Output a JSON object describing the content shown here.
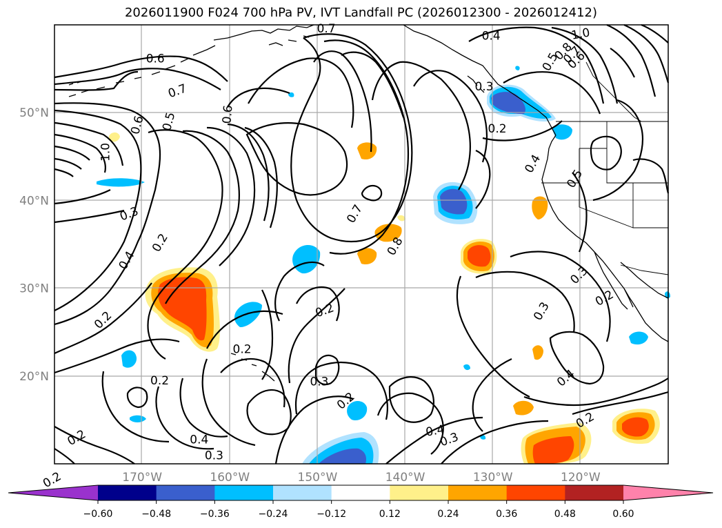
{
  "title": "2026011900 F024 700 hPa PV, IVT Landfall PC (2026012300 - 2026012412)",
  "latitudes": [
    {
      "label": "50°N",
      "lat": 50
    },
    {
      "label": "40°N",
      "lat": 40
    },
    {
      "label": "30°N",
      "lat": 30
    },
    {
      "label": "20°N",
      "lat": 20
    }
  ],
  "longitudes": [
    {
      "label": "170°W",
      "lon": -170
    },
    {
      "label": "160°W",
      "lon": -160
    },
    {
      "label": "150°W",
      "lon": -150
    },
    {
      "label": "140°W",
      "lon": -140
    },
    {
      "label": "130°W",
      "lon": -130
    },
    {
      "label": "120°W",
      "lon": -120
    }
  ],
  "colorbar": {
    "colors": [
      "#9a32cd",
      "#00008b",
      "#3a5fcd",
      "#00bfff",
      "#b0e2ff",
      "#ffffff",
      "#fff08a",
      "#ffa500",
      "#ff4500",
      "#b22222",
      "#ff82ab"
    ],
    "ticks": [
      "−0.60",
      "−0.48",
      "−0.36",
      "−0.24",
      "−0.12",
      "0.12",
      "0.24",
      "0.36",
      "0.48",
      "0.60"
    ]
  },
  "contour_labels": [
    {
      "text": "0.6",
      "lon": -168.5,
      "lat": 56.2,
      "rot": 0
    },
    {
      "text": "0.7",
      "lon": -166.0,
      "lat": 52.5,
      "rot": -20
    },
    {
      "text": "0.7",
      "lon": -149.0,
      "lat": 59.6,
      "rot": 0
    },
    {
      "text": "0.6",
      "lon": -160.3,
      "lat": 49.8,
      "rot": -85
    },
    {
      "text": "0.4",
      "lon": -130.2,
      "lat": 58.8,
      "rot": 0
    },
    {
      "text": "1.0",
      "lon": -120.0,
      "lat": 59.0,
      "rot": -10
    },
    {
      "text": "0.8",
      "lon": -122.0,
      "lat": 57.0,
      "rot": -45
    },
    {
      "text": "0.7",
      "lon": -121.0,
      "lat": 56.6,
      "rot": -45
    },
    {
      "text": "0.6",
      "lon": -120.5,
      "lat": 56.0,
      "rot": -45
    },
    {
      "text": "0.5",
      "lon": -123.5,
      "lat": 55.8,
      "rot": -60
    },
    {
      "text": "0.3",
      "lon": -131.0,
      "lat": 53.0,
      "rot": 0
    },
    {
      "text": "0.2",
      "lon": -129.5,
      "lat": 48.2,
      "rot": 0
    },
    {
      "text": "0.5",
      "lon": -167.0,
      "lat": 49.0,
      "rot": -75
    },
    {
      "text": "0.6",
      "lon": -170.6,
      "lat": 48.6,
      "rot": -75
    },
    {
      "text": "1.0",
      "lon": -174.2,
      "lat": 45.5,
      "rot": -90
    },
    {
      "text": "0.3",
      "lon": -171.5,
      "lat": 38.5,
      "rot": -20
    },
    {
      "text": "0.4",
      "lon": -171.8,
      "lat": 33.2,
      "rot": -60
    },
    {
      "text": "0.2",
      "lon": -168.0,
      "lat": 35.2,
      "rot": -60
    },
    {
      "text": "0.7",
      "lon": -145.8,
      "lat": 38.5,
      "rot": -60
    },
    {
      "text": "0.8",
      "lon": -141.2,
      "lat": 34.8,
      "rot": -60
    },
    {
      "text": "0.4",
      "lon": -125.5,
      "lat": 44.2,
      "rot": -60
    },
    {
      "text": "0.5",
      "lon": -120.7,
      "lat": 42.5,
      "rot": -60
    },
    {
      "text": "0.3",
      "lon": -120.2,
      "lat": 31.5,
      "rot": -45
    },
    {
      "text": "0.3",
      "lon": -124.5,
      "lat": 27.4,
      "rot": -60
    },
    {
      "text": "0.2",
      "lon": -117.3,
      "lat": 28.9,
      "rot": -30
    },
    {
      "text": "0.2",
      "lon": -149.2,
      "lat": 27.5,
      "rot": -20
    },
    {
      "text": "0.2",
      "lon": -174.5,
      "lat": 26.4,
      "rot": -45
    },
    {
      "text": "0.2",
      "lon": -158.6,
      "lat": 23.1,
      "rot": 0
    },
    {
      "text": "0.2",
      "lon": -168.0,
      "lat": 19.5,
      "rot": 0
    },
    {
      "text": "0.3",
      "lon": -149.8,
      "lat": 19.4,
      "rot": 0
    },
    {
      "text": "0.2",
      "lon": -146.8,
      "lat": 17.2,
      "rot": -40
    },
    {
      "text": "0.4",
      "lon": -136.6,
      "lat": 13.8,
      "rot": -10
    },
    {
      "text": "0.3",
      "lon": -135.0,
      "lat": 12.8,
      "rot": -20
    },
    {
      "text": "0.4",
      "lon": -163.5,
      "lat": 12.8,
      "rot": 0
    },
    {
      "text": "0.3",
      "lon": -161.8,
      "lat": 11.0,
      "rot": 0
    },
    {
      "text": "0.2",
      "lon": -177.5,
      "lat": 13.0,
      "rot": -30
    },
    {
      "text": "0.2",
      "lon": -180.3,
      "lat": 8.2,
      "rot": -30
    },
    {
      "text": "0.4",
      "lon": -121.7,
      "lat": 19.8,
      "rot": -40
    },
    {
      "text": "0.2",
      "lon": -119.5,
      "lat": 15.0,
      "rot": -30
    }
  ]
}
